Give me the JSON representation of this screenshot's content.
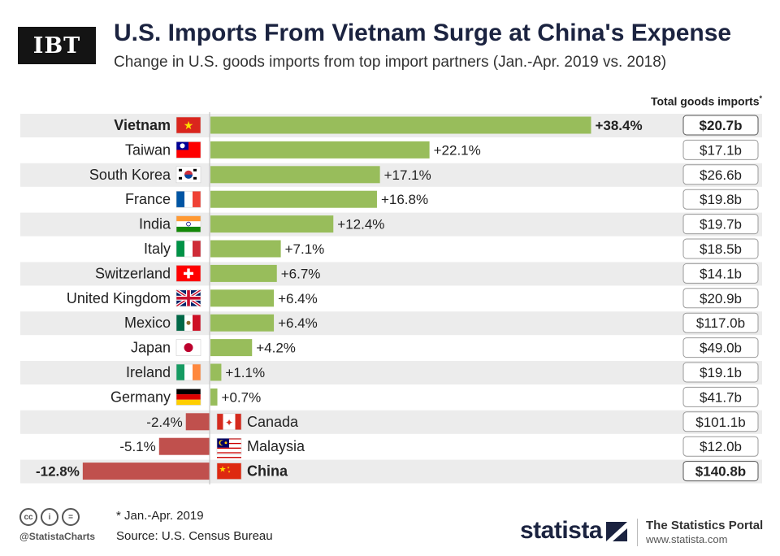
{
  "logo": "IBT",
  "title": "U.S. Imports From Vietnam Surge at China's Expense",
  "subtitle": "Change in U.S. goods imports from top import partners (Jan.-Apr. 2019 vs. 2018)",
  "total_header": "Total goods imports",
  "total_header_mark": "*",
  "footnote": "* Jan.-Apr. 2019",
  "source": "Source: U.S. Census Bureau",
  "handle": "@StatistaCharts",
  "statista": "statista",
  "portal_title": "The Statistics Portal",
  "portal_url": "www.statista.com",
  "colors": {
    "positive": "#98bd5b",
    "negative": "#c0504d",
    "stripe": "#ececec",
    "axis": "#bbbbbb"
  },
  "chart_data": {
    "type": "bar",
    "orientation": "horizontal",
    "categories": [
      "Vietnam",
      "Taiwan",
      "South Korea",
      "France",
      "India",
      "Italy",
      "Switzerland",
      "United Kingdom",
      "Mexico",
      "Japan",
      "Ireland",
      "Germany",
      "Canada",
      "Malaysia",
      "China"
    ],
    "values": [
      38.4,
      22.1,
      17.1,
      16.8,
      12.4,
      7.1,
      6.7,
      6.4,
      6.4,
      4.2,
      1.1,
      0.7,
      -2.4,
      -5.1,
      -12.8
    ],
    "value_labels": [
      "+38.4%",
      "+22.1%",
      "+17.1%",
      "+16.8%",
      "+12.4%",
      "+7.1%",
      "+6.7%",
      "+6.4%",
      "+6.4%",
      "+4.2%",
      "+1.1%",
      "+0.7%",
      "-2.4%",
      "-5.1%",
      "-12.8%"
    ],
    "totals": [
      "$20.7b",
      "$17.1b",
      "$26.6b",
      "$19.8b",
      "$19.7b",
      "$18.5b",
      "$14.1b",
      "$20.9b",
      "$117.0b",
      "$49.0b",
      "$19.1b",
      "$41.7b",
      "$101.1b",
      "$12.0b",
      "$140.8b"
    ],
    "highlighted": [
      "Vietnam",
      "China"
    ],
    "flags": [
      "vietnam-flag-icon",
      "taiwan-flag-icon",
      "south-korea-flag-icon",
      "france-flag-icon",
      "india-flag-icon",
      "italy-flag-icon",
      "switzerland-flag-icon",
      "uk-flag-icon",
      "mexico-flag-icon",
      "japan-flag-icon",
      "ireland-flag-icon",
      "germany-flag-icon",
      "canada-flag-icon",
      "malaysia-flag-icon",
      "china-flag-icon"
    ],
    "unit": "%",
    "xlim": [
      -12.8,
      38.4
    ],
    "grid": false,
    "legend": "none"
  }
}
